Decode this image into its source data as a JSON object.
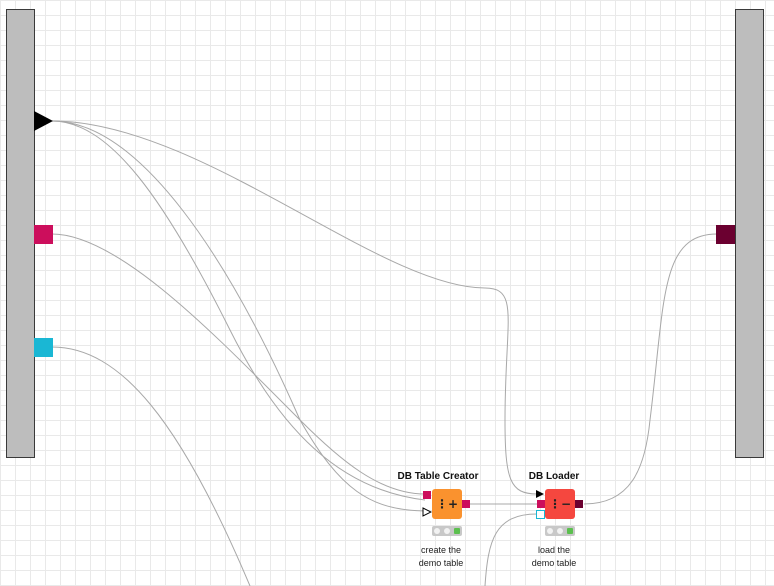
{
  "colors": {
    "flow_variable_port": "#000000",
    "db_connection_port": "#cc0e5c",
    "db_session_port": "#1ab7d4",
    "db_data_port": "#6b0030",
    "creator_node": "#fa922e",
    "loader_node": "#f5473f",
    "status_ok": "#5bbf4e"
  },
  "input_ports": [
    {
      "type": "flow-variable",
      "icon": "triangle-right-icon"
    },
    {
      "type": "db-connection",
      "icon": "square-icon"
    },
    {
      "type": "db-session",
      "icon": "square-icon"
    }
  ],
  "output_ports": [
    {
      "type": "db-data",
      "icon": "square-icon"
    }
  ],
  "nodes": [
    {
      "title": "DB Table Creator",
      "icon": "table-add-icon",
      "icon_glyph": "⋮+",
      "caption_line1": "create the",
      "caption_line2": "demo table",
      "status": "executed"
    },
    {
      "title": "DB Loader",
      "icon": "table-load-icon",
      "icon_glyph": "⋮−",
      "caption_line1": "load the",
      "caption_line2": "demo table",
      "status": "executed"
    }
  ]
}
